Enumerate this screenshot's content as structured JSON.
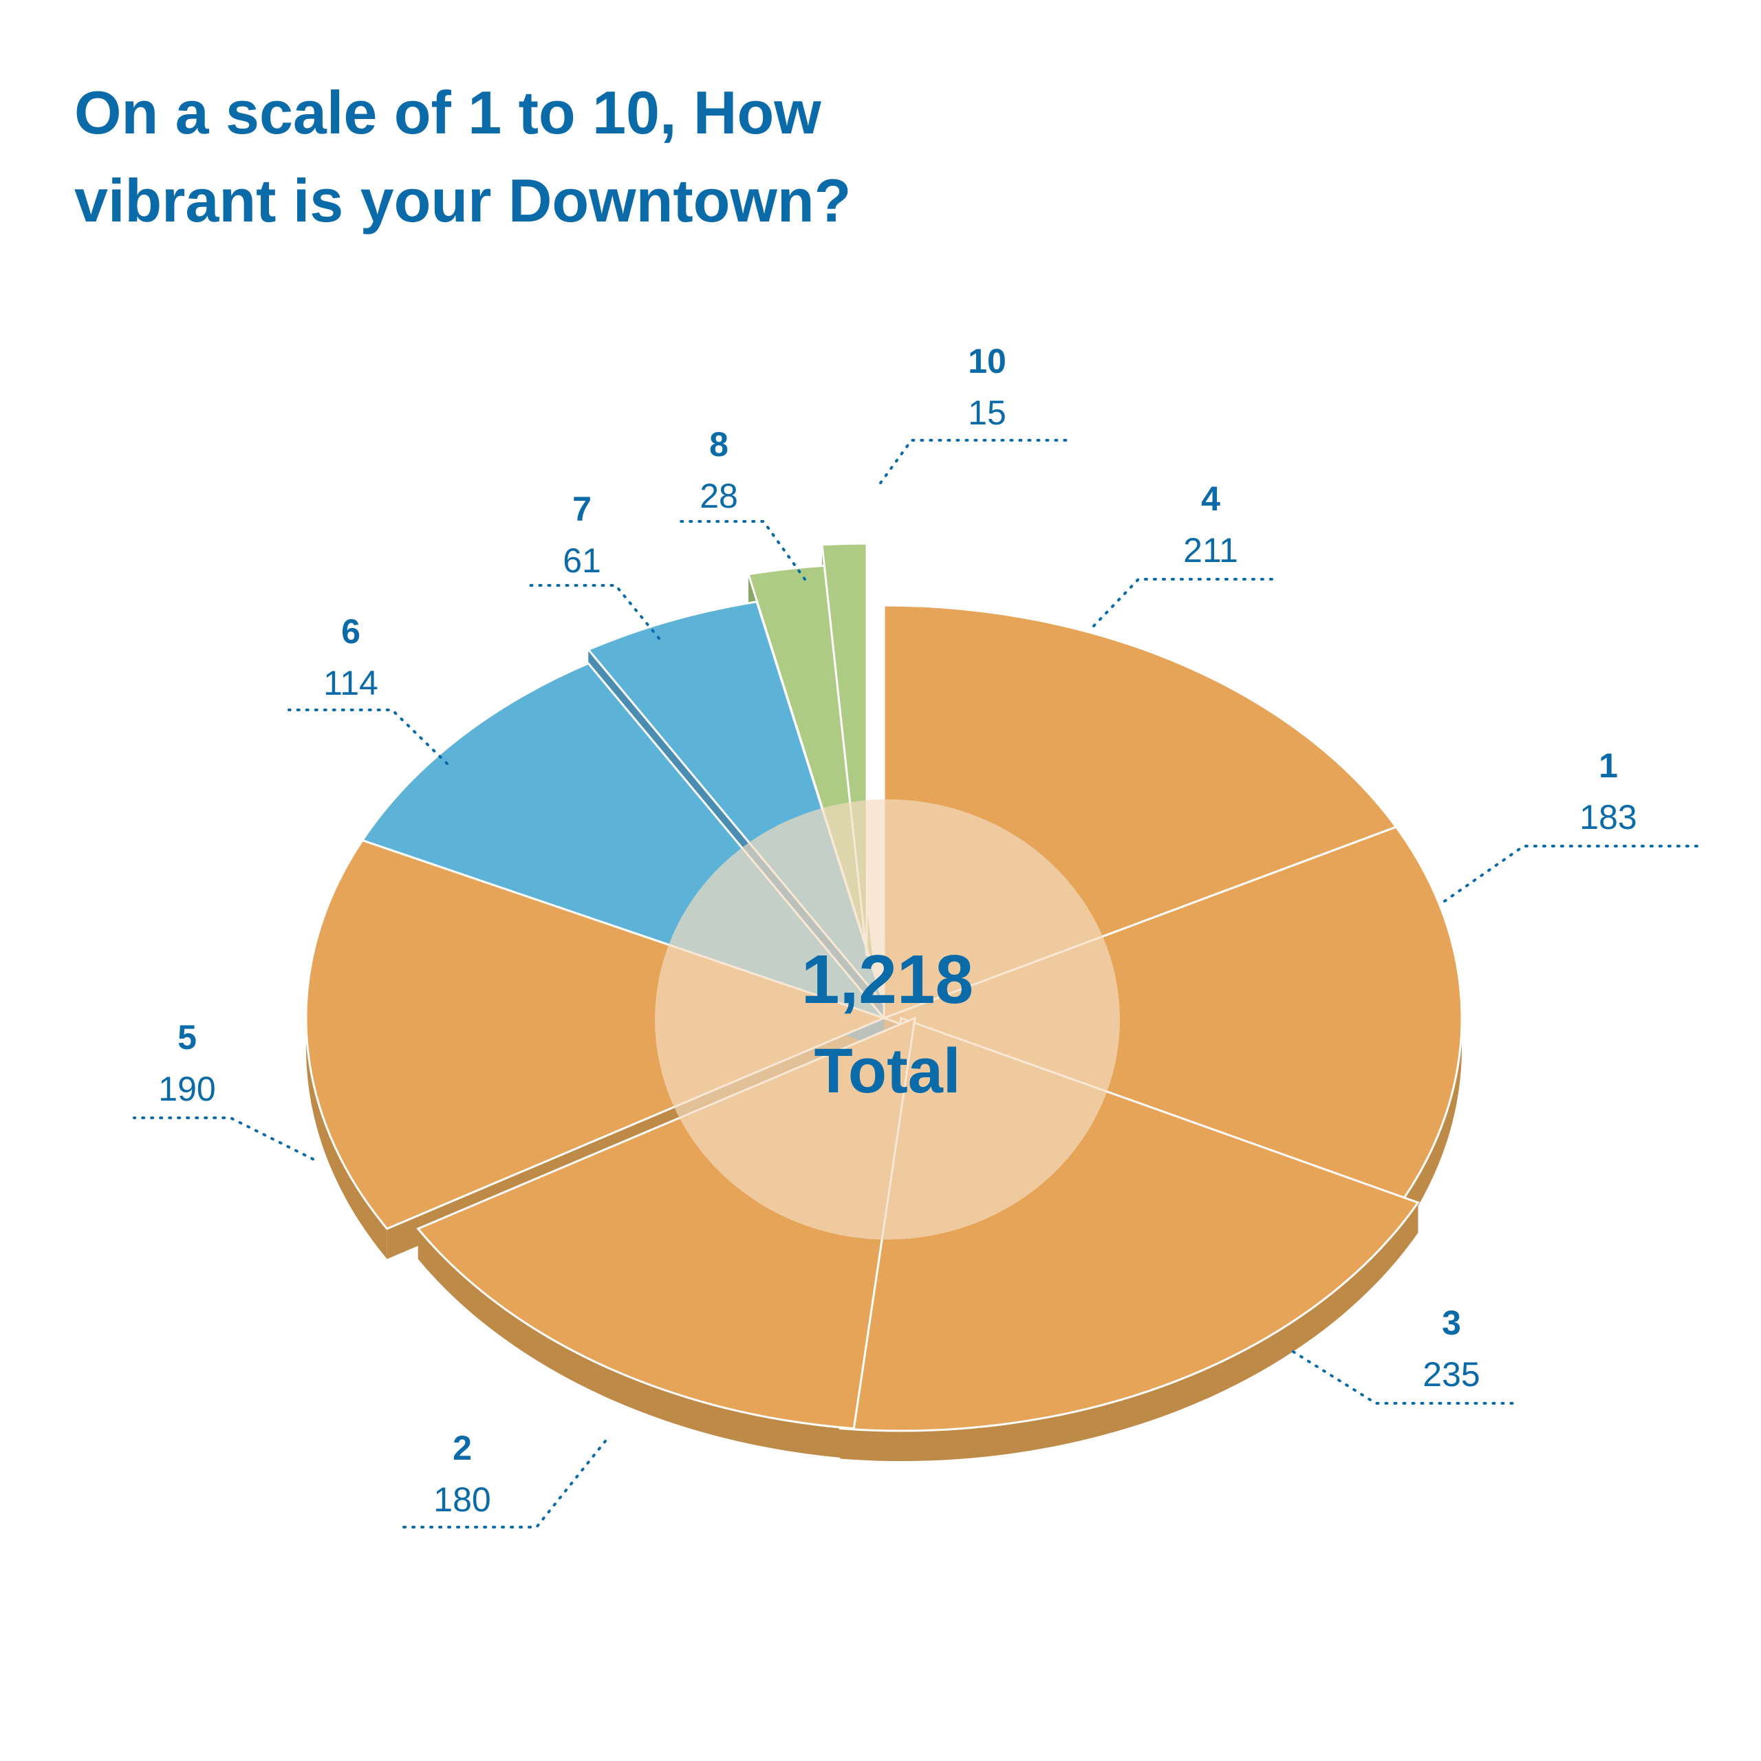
{
  "chart_data": {
    "type": "pie",
    "title_line1": "On a scale of 1 to 10, How",
    "title_line2": "vibrant is your Downtown?",
    "center_value": "1,218",
    "center_label": "Total",
    "slices": [
      {
        "category": "4",
        "value": 211,
        "color": "#e5a457",
        "side": "#bd8a48"
      },
      {
        "category": "1",
        "value": 183,
        "color": "#e5a457",
        "side": "#bd8a48"
      },
      {
        "category": "3",
        "value": 235,
        "color": "#e5a457",
        "side": "#bd8a48"
      },
      {
        "category": "2",
        "value": 180,
        "color": "#e5a457",
        "side": "#bd8a48"
      },
      {
        "category": "5",
        "value": 190,
        "color": "#e5a457",
        "side": "#bd8a48"
      },
      {
        "category": "6",
        "value": 114,
        "color": "#5db3d7",
        "side": "#4a8db0"
      },
      {
        "category": "7",
        "value": 61,
        "color": "#5db3d7",
        "side": "#4a8db0"
      },
      {
        "category": "8",
        "value": 28,
        "color": "#aecb84",
        "side": "#8aa665"
      },
      {
        "category": "10",
        "value": 15,
        "color": "#aecb84",
        "side": "#8aa665"
      }
    ],
    "hub_color": "#f3dcc0"
  }
}
